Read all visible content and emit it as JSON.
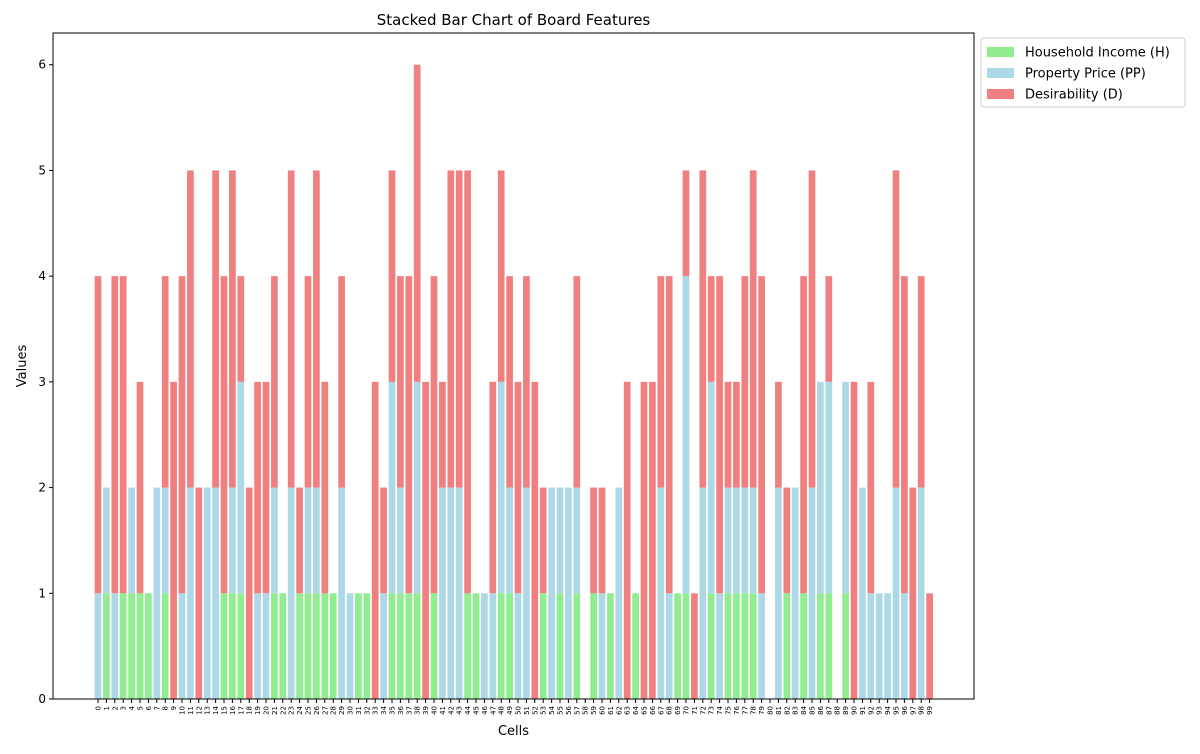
{
  "chart_data": {
    "type": "bar",
    "stacked": true,
    "title": "Stacked Bar Chart of Board Features",
    "xlabel": "Cells",
    "ylabel": "Values",
    "ylim": [
      0,
      6.3
    ],
    "yticks": [
      0,
      1,
      2,
      3,
      4,
      5,
      6
    ],
    "legend_position": "upper right, outside plot",
    "grid": false,
    "categories": [
      "0",
      "1",
      "2",
      "3",
      "4",
      "5",
      "6",
      "7",
      "8",
      "9",
      "10",
      "11",
      "12",
      "13",
      "14",
      "15",
      "16",
      "17",
      "18",
      "19",
      "20",
      "21",
      "22",
      "23",
      "24",
      "25",
      "26",
      "27",
      "28",
      "29",
      "30",
      "31",
      "32",
      "33",
      "34",
      "35",
      "36",
      "37",
      "38",
      "39",
      "40",
      "41",
      "42",
      "43",
      "44",
      "45",
      "46",
      "47",
      "48",
      "49",
      "50",
      "51",
      "52",
      "53",
      "54",
      "55",
      "56",
      "57",
      "58",
      "59",
      "60",
      "61",
      "62",
      "63",
      "64",
      "65",
      "66",
      "67",
      "68",
      "69",
      "70",
      "71",
      "72",
      "73",
      "74",
      "75",
      "76",
      "77",
      "78",
      "79",
      "80",
      "81",
      "82",
      "83",
      "84",
      "85",
      "86",
      "87",
      "88",
      "89",
      "90",
      "91",
      "92",
      "93",
      "94",
      "95",
      "96",
      "97",
      "98",
      "99"
    ],
    "series": [
      {
        "name": "Household Income (H)",
        "color": "#90ee90",
        "values": [
          0,
          1,
          0,
          1,
          1,
          1,
          1,
          0,
          1,
          0,
          0,
          0,
          0,
          0,
          0,
          1,
          1,
          1,
          0,
          0,
          0,
          1,
          1,
          0,
          1,
          1,
          1,
          1,
          1,
          0,
          0,
          1,
          1,
          0,
          0,
          1,
          1,
          1,
          1,
          0,
          1,
          0,
          0,
          0,
          1,
          1,
          0,
          0,
          1,
          1,
          0,
          0,
          0,
          1,
          0,
          1,
          0,
          1,
          0,
          1,
          0,
          1,
          0,
          0,
          1,
          0,
          0,
          0,
          0,
          1,
          1,
          0,
          0,
          1,
          0,
          1,
          1,
          1,
          1,
          0,
          0,
          0,
          1,
          0,
          1,
          0,
          1,
          1,
          0,
          1,
          0,
          0,
          0,
          0,
          0,
          0,
          0,
          0,
          0,
          0
        ]
      },
      {
        "name": "Property Price (PP)",
        "color": "#add8e6",
        "values": [
          1,
          1,
          1,
          0,
          1,
          0,
          0,
          2,
          1,
          0,
          1,
          2,
          0,
          2,
          2,
          0,
          1,
          2,
          0,
          1,
          1,
          1,
          0,
          2,
          0,
          1,
          1,
          0,
          0,
          2,
          1,
          0,
          0,
          0,
          1,
          2,
          1,
          0,
          2,
          0,
          0,
          2,
          2,
          2,
          0,
          0,
          1,
          1,
          2,
          1,
          1,
          2,
          0,
          0,
          2,
          1,
          2,
          1,
          0,
          0,
          1,
          0,
          2,
          0,
          0,
          0,
          0,
          2,
          1,
          0,
          3,
          0,
          2,
          2,
          1,
          1,
          1,
          1,
          1,
          1,
          0,
          2,
          0,
          2,
          0,
          2,
          2,
          2,
          0,
          2,
          0,
          2,
          1,
          1,
          1,
          2,
          1,
          0,
          2,
          0
        ]
      },
      {
        "name": "Desirability (D)",
        "color": "#f08080",
        "values": [
          3,
          0,
          3,
          3,
          0,
          2,
          0,
          0,
          2,
          3,
          3,
          3,
          2,
          0,
          3,
          3,
          3,
          1,
          2,
          2,
          2,
          2,
          0,
          3,
          1,
          2,
          3,
          2,
          0,
          2,
          0,
          0,
          0,
          3,
          1,
          2,
          2,
          3,
          3,
          3,
          3,
          1,
          3,
          3,
          4,
          0,
          0,
          2,
          2,
          2,
          2,
          2,
          3,
          1,
          0,
          0,
          0,
          2,
          0,
          1,
          1,
          0,
          0,
          3,
          0,
          3,
          3,
          2,
          3,
          0,
          1,
          1,
          3,
          1,
          3,
          1,
          1,
          2,
          3,
          3,
          0,
          1,
          1,
          0,
          3,
          3,
          0,
          1,
          0,
          0,
          3,
          0,
          2,
          0,
          0,
          3,
          3,
          2,
          2,
          1
        ]
      }
    ]
  }
}
